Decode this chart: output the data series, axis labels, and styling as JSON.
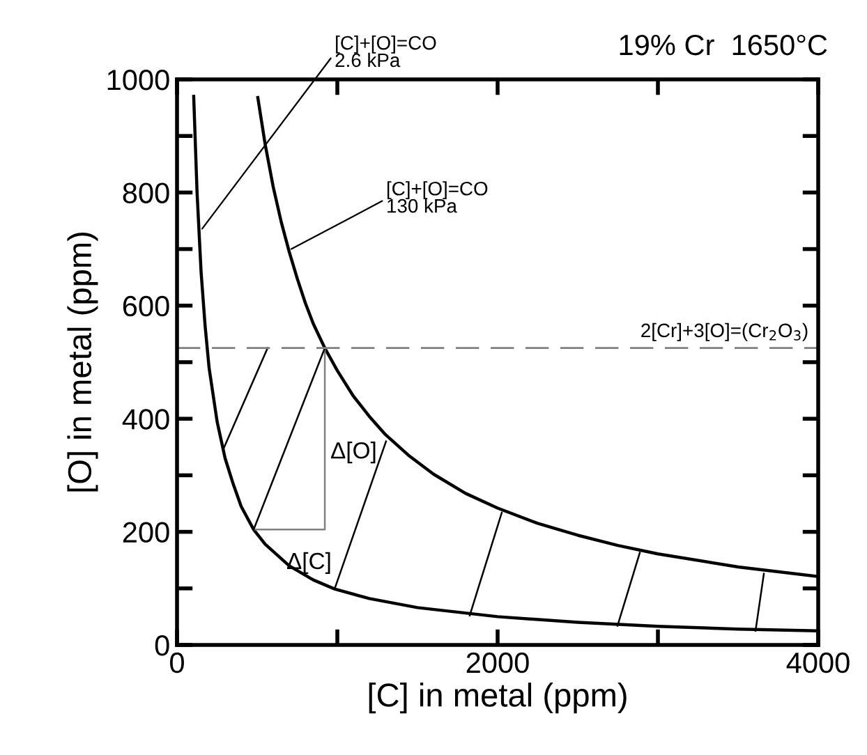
{
  "chart_data": {
    "type": "line",
    "title": "19% Cr  1650°C",
    "xlabel": "[C] in metal (ppm)",
    "ylabel": "[O] in metal (ppm)",
    "xlim": [
      0,
      4000
    ],
    "ylim": [
      0,
      1000
    ],
    "xticks": [
      0,
      {
        "value": 1000,
        "label": null
      },
      2000,
      {
        "value": 3000,
        "label": null
      },
      4000
    ],
    "yticks": [
      0,
      {
        "value": 100,
        "label": null
      },
      200,
      {
        "value": 300,
        "label": null
      },
      400,
      {
        "value": 500,
        "label": null
      },
      600,
      {
        "value": 700,
        "label": null
      },
      800,
      {
        "value": 900,
        "label": null
      },
      1000
    ],
    "grid": false,
    "legend": false,
    "marker": "none",
    "line_style": "solid",
    "series": [
      {
        "color": "#000000",
        "x": [
          104,
          125,
          150,
          175,
          200,
          250,
          300,
          350,
          400,
          478,
          550,
          700,
          850,
          983,
          1200,
          1500,
          2000,
          2500,
          3000,
          3500,
          4000
        ],
        "values": [
          970,
          800,
          660,
          565,
          490,
          395,
          330,
          285,
          245,
          204,
          178,
          140,
          115,
          99,
          82,
          66,
          50,
          40,
          33,
          28,
          25
        ]
      },
      {
        "color": "#000000",
        "x": [
          504,
          550,
          600,
          650,
          700,
          750,
          800,
          850,
          922,
          1000,
          1100,
          1200,
          1300,
          1450,
          1600,
          1800,
          2000,
          2250,
          2500,
          2750,
          3000,
          3500,
          4000
        ],
        "values": [
          968,
          885,
          810,
          748,
          695,
          648,
          605,
          568,
          525,
          485,
          440,
          404,
          372,
          334,
          302,
          268,
          242,
          215,
          194,
          176,
          161,
          138,
          121
        ]
      },
      {
        "color": "#808080",
        "x": [
          478,
          922,
          922
        ],
        "values": [
          204,
          204,
          525
        ]
      },
      {
        "color": "#000000",
        "x": [
          565,
          287
        ],
        "values": [
          525,
          345
        ]
      },
      {
        "color": "#000000",
        "x": [
          922,
          478
        ],
        "values": [
          525,
          204
        ]
      },
      {
        "color": "#000000",
        "x": [
          1304,
          983
        ],
        "values": [
          360,
          99
        ]
      },
      {
        "color": "#000000",
        "x": [
          2026,
          1826
        ],
        "values": [
          234,
          52
        ]
      },
      {
        "color": "#000000",
        "x": [
          2887,
          2748
        ],
        "values": [
          163,
          34
        ]
      },
      {
        "color": "#000000",
        "x": [
          3661,
          3609
        ],
        "values": [
          126,
          25
        ]
      }
    ],
    "ref_lines": [
      {
        "axis": "y",
        "value": 525,
        "label": "2[Cr]+3[O]=(Cr$_{2}$O$_{3}$)",
        "color": "#808080",
        "line_style": "dashed"
      }
    ],
    "annotations": [
      {
        "text": "[C]+[O]=CO\n2.6 kPa",
        "x": 157,
        "y": 736
      },
      {
        "text": "[C]+[O]=CO\n130 kPa",
        "x": 713,
        "y": 700
      },
      {
        "text": "Δ[O]",
        "x": 922,
        "y": 365
      },
      {
        "text": "Δ[C]",
        "x": 700,
        "y": 204
      }
    ]
  }
}
